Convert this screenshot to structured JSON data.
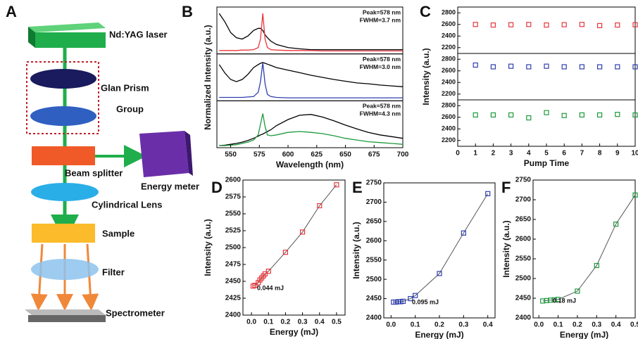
{
  "diagram": {
    "panel": "A",
    "labels": [
      "Nd:YAG laser",
      "Glan Prism",
      "Group",
      "Beam splitter",
      "Energy meter",
      "Cylindrical Lens",
      "Sample",
      "Filter",
      "Spectrometer"
    ]
  },
  "chart_data": [
    {
      "type": "line",
      "panel": "B",
      "xlabel": "Wavelength (nm)",
      "ylabel": "Normalized Intensity (a.u.)",
      "x": [
        540,
        545,
        550,
        555,
        560,
        565,
        570,
        574,
        576,
        578,
        580,
        582,
        585,
        590,
        600,
        610,
        620,
        630,
        640,
        650,
        660,
        670,
        680,
        690,
        700
      ],
      "xlim": [
        538,
        700
      ],
      "xticks": [
        550,
        575,
        600,
        625,
        650,
        675,
        700
      ],
      "subplots": [
        {
          "ylim": [
            0,
            1.1
          ],
          "annotations": [
            "Peak=578 nm",
            "FWHM=3.7 nm"
          ],
          "series": [
            {
              "color": "#000000",
              "values": [
                0.95,
                0.75,
                0.5,
                0.38,
                0.35,
                0.42,
                0.55,
                0.6,
                0.6,
                0.55,
                0.45,
                0.38,
                0.3,
                0.22,
                0.15,
                0.12,
                0.1,
                0.1,
                0.1,
                0.1,
                0.1,
                0.1,
                0.1,
                0.1,
                0.1
              ]
            },
            {
              "color": "#e8363c",
              "values": [
                0.08,
                0.08,
                0.08,
                0.08,
                0.09,
                0.09,
                0.1,
                0.15,
                0.35,
                0.95,
                0.35,
                0.15,
                0.1,
                0.09,
                0.08,
                0.08,
                0.08,
                0.07,
                0.07,
                0.07,
                0.07,
                0.07,
                0.07,
                0.07,
                0.07
              ]
            }
          ]
        },
        {
          "ylim": [
            0,
            1.1
          ],
          "annotations": [
            "Peak=578 nm",
            "FWHM=3.0 nm"
          ],
          "series": [
            {
              "color": "#000000",
              "values": [
                0.85,
                0.65,
                0.5,
                0.45,
                0.5,
                0.62,
                0.78,
                0.85,
                0.88,
                0.9,
                0.88,
                0.86,
                0.83,
                0.78,
                0.72,
                0.66,
                0.6,
                0.55,
                0.5,
                0.46,
                0.42,
                0.4,
                0.37,
                0.35,
                0.33
              ]
            },
            {
              "color": "#2f3fb0",
              "values": [
                0.08,
                0.08,
                0.08,
                0.08,
                0.08,
                0.09,
                0.1,
                0.2,
                0.45,
                0.9,
                0.4,
                0.15,
                0.1,
                0.08,
                0.07,
                0.07,
                0.07,
                0.07,
                0.07,
                0.07,
                0.07,
                0.07,
                0.07,
                0.07,
                0.07
              ]
            }
          ]
        },
        {
          "ylim": [
            0,
            1.1
          ],
          "annotations": [
            "Peak=578 nm",
            "FWHM=4.3 nm"
          ],
          "series": [
            {
              "color": "#000000",
              "values": [
                0.05,
                0.06,
                0.08,
                0.1,
                0.13,
                0.17,
                0.22,
                0.27,
                0.3,
                0.32,
                0.35,
                0.38,
                0.42,
                0.52,
                0.66,
                0.76,
                0.78,
                0.72,
                0.63,
                0.53,
                0.44,
                0.36,
                0.3,
                0.26,
                0.22
              ]
            },
            {
              "color": "#1c9a3c",
              "values": [
                0.05,
                0.05,
                0.06,
                0.07,
                0.1,
                0.13,
                0.18,
                0.3,
                0.55,
                0.8,
                0.5,
                0.3,
                0.28,
                0.3,
                0.36,
                0.38,
                0.36,
                0.33,
                0.28,
                0.22,
                0.18,
                0.14,
                0.12,
                0.1,
                0.08
              ]
            }
          ]
        }
      ]
    },
    {
      "type": "scatter",
      "panel": "C",
      "xlabel": "Pump Time",
      "ylabel": "Intensity (a.u.)",
      "x": [
        1,
        2,
        3,
        4,
        5,
        6,
        7,
        8,
        9,
        10
      ],
      "xlim": [
        0,
        10
      ],
      "xticks": [
        0,
        1,
        2,
        3,
        4,
        5,
        6,
        7,
        8,
        9,
        10
      ],
      "subplots": [
        {
          "ylim": [
            2100,
            2900
          ],
          "yticks": [
            2200,
            2400,
            2600,
            2800
          ],
          "series": [
            {
              "color": "#e8363c",
              "values": [
                2600,
                2590,
                2595,
                2600,
                2590,
                2595,
                2600,
                2580,
                2590,
                2595
              ]
            }
          ]
        },
        {
          "ylim": [
            2100,
            2900
          ],
          "yticks": [
            2200,
            2400,
            2600,
            2800
          ],
          "series": [
            {
              "color": "#2f3fb0",
              "values": [
                2700,
                2670,
                2680,
                2670,
                2680,
                2670,
                2670,
                2670,
                2670,
                2670
              ]
            }
          ]
        },
        {
          "ylim": [
            2100,
            2900
          ],
          "yticks": [
            2200,
            2400,
            2600,
            2800
          ],
          "series": [
            {
              "color": "#1c9a3c",
              "values": [
                2640,
                2640,
                2640,
                2590,
                2680,
                2630,
                2640,
                2640,
                2650,
                2640
              ]
            }
          ]
        }
      ]
    },
    {
      "type": "scatter",
      "panel": "D",
      "xlabel": "Energy (mJ)",
      "ylabel": "Intensity (a.u.)",
      "color": "#e8363c",
      "annotation": "0.044 mJ",
      "x": [
        0.01,
        0.02,
        0.04,
        0.05,
        0.06,
        0.07,
        0.08,
        0.1,
        0.2,
        0.3,
        0.4,
        0.5
      ],
      "values": [
        2443,
        2444,
        2448,
        2452,
        2455,
        2458,
        2461,
        2465,
        2493,
        2523,
        2562,
        2593
      ],
      "xlim": [
        -0.05,
        0.55
      ],
      "xticks": [
        {
          "value": 0,
          "label": "0.0"
        },
        0.1,
        0.2,
        0.3,
        0.4,
        0.5
      ],
      "ylim": [
        2400,
        2600
      ],
      "yticks": [
        2400,
        2425,
        2450,
        2475,
        2500,
        2525,
        2550,
        2575,
        2600
      ]
    },
    {
      "type": "scatter",
      "panel": "E",
      "xlabel": "Energy (mJ)",
      "ylabel": "Intensity (a.u.)",
      "color": "#2f3fb0",
      "annotation": "0.095 mJ",
      "x": [
        0.01,
        0.02,
        0.03,
        0.04,
        0.05,
        0.08,
        0.1,
        0.2,
        0.3,
        0.4
      ],
      "values": [
        2441,
        2441,
        2442,
        2442,
        2443,
        2450,
        2458,
        2515,
        2620,
        2722
      ],
      "xlim": [
        -0.03,
        0.43
      ],
      "xticks": [
        {
          "value": 0,
          "label": "0.0"
        },
        0.1,
        0.2,
        0.3,
        0.4
      ],
      "ylim": [
        2400,
        2750
      ],
      "yticks": [
        2400,
        2450,
        2500,
        2550,
        2600,
        2650,
        2700,
        2750
      ]
    },
    {
      "type": "scatter",
      "panel": "F",
      "xlabel": "Energy (mJ)",
      "ylabel": "Intensity (a.u.)",
      "color": "#1c9a3c",
      "annotation": "0.18 mJ",
      "x": [
        0.02,
        0.04,
        0.06,
        0.08,
        0.1,
        0.2,
        0.3,
        0.4,
        0.5
      ],
      "values": [
        2443,
        2444,
        2445,
        2446,
        2447,
        2468,
        2533,
        2638,
        2712
      ],
      "xlim": [
        -0.03,
        0.5
      ],
      "xticks": [
        {
          "value": 0,
          "label": "0.0"
        },
        0.1,
        0.2,
        0.3,
        0.4,
        0.5
      ],
      "ylim": [
        2400,
        2750
      ],
      "yticks": [
        2400,
        2450,
        2500,
        2550,
        2600,
        2650,
        2700,
        2750
      ]
    }
  ]
}
